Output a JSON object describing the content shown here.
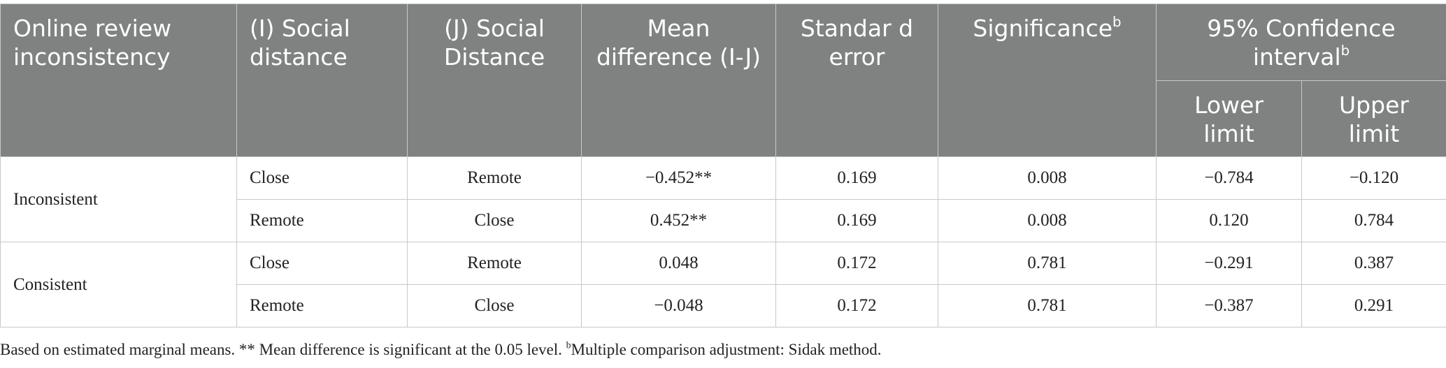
{
  "header": {
    "columns": [
      {
        "text": "Online review inconsistency"
      },
      {
        "text": "(I) Social distance"
      },
      {
        "text": "(J) Social Distance"
      },
      {
        "text": "Mean difference (I-J)"
      },
      {
        "text": "Standar d error"
      },
      {
        "text": "Significance",
        "sup": "b"
      },
      {
        "text": "95% Confidence interval",
        "sup": "b"
      }
    ],
    "subcolumns": [
      "Lower limit",
      "Upper limit"
    ]
  },
  "groups": [
    {
      "label": "Inconsistent",
      "rows": [
        [
          "Close",
          "Remote",
          "−0.452**",
          "0.169",
          "0.008",
          "−0.784",
          "−0.120"
        ],
        [
          "Remote",
          "Close",
          "0.452**",
          "0.169",
          "0.008",
          "0.120",
          "0.784"
        ]
      ]
    },
    {
      "label": "Consistent",
      "rows": [
        [
          "Close",
          "Remote",
          "0.048",
          "0.172",
          "0.781",
          "−0.291",
          "0.387"
        ],
        [
          "Remote",
          "Close",
          "−0.048",
          "0.172",
          "0.781",
          "−0.387",
          "0.291"
        ]
      ]
    }
  ],
  "footnote": {
    "text": "Based on estimated marginal means. ** Mean difference is significant at the 0.05 level. ",
    "sup": "b",
    "text2": "Multiple comparison adjustment: Sidak method."
  }
}
